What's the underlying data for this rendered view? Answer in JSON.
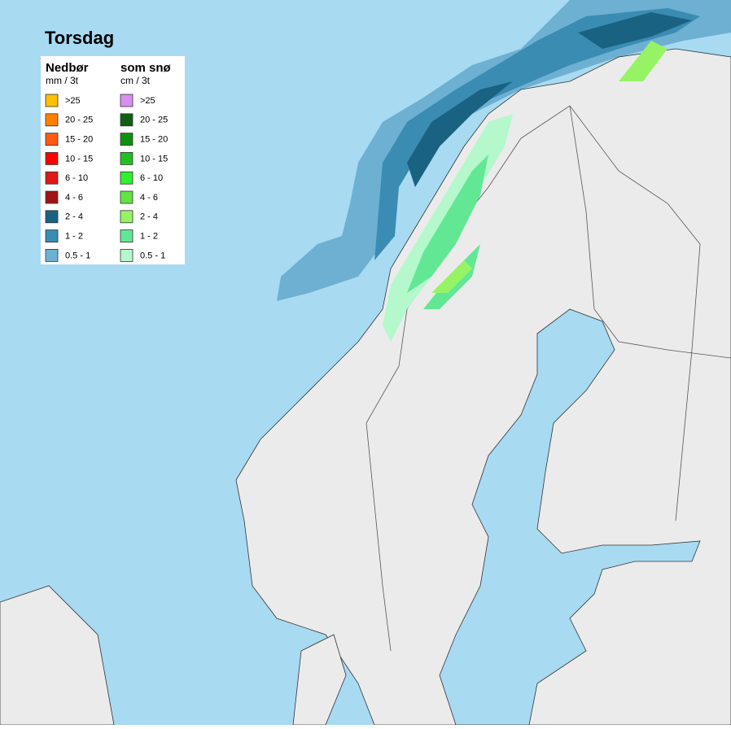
{
  "title": "Torsdag",
  "legend": {
    "rain": {
      "heading": "Nedbør",
      "unit": "mm / 3t",
      "entries": [
        {
          "label": ">25",
          "color": "#ffc000"
        },
        {
          "label": "20 - 25",
          "color": "#ff8000"
        },
        {
          "label": "15 - 20",
          "color": "#ff5a14"
        },
        {
          "label": "10 - 15",
          "color": "#ff0000"
        },
        {
          "label": "6 - 10",
          "color": "#e01818"
        },
        {
          "label": "4 - 6",
          "color": "#a01414"
        },
        {
          "label": "2 - 4",
          "color": "#1a6282"
        },
        {
          "label": "1 - 2",
          "color": "#3a8cb2"
        },
        {
          "label": "0.5 - 1",
          "color": "#6eb0d2"
        }
      ]
    },
    "snow": {
      "heading": "som snø",
      "unit": "cm / 3t",
      "entries": [
        {
          "label": ">25",
          "color": "#d890f0"
        },
        {
          "label": "20 - 25",
          "color": "#106010"
        },
        {
          "label": "15 - 20",
          "color": "#109010"
        },
        {
          "label": "10 - 15",
          "color": "#22c022"
        },
        {
          "label": "6 - 10",
          "color": "#30f030"
        },
        {
          "label": "4 - 6",
          "color": "#62e442"
        },
        {
          "label": "2 - 4",
          "color": "#96f464"
        },
        {
          "label": "1 - 2",
          "color": "#62e894"
        },
        {
          "label": "0.5 - 1",
          "color": "#b4f8cc"
        }
      ]
    }
  }
}
